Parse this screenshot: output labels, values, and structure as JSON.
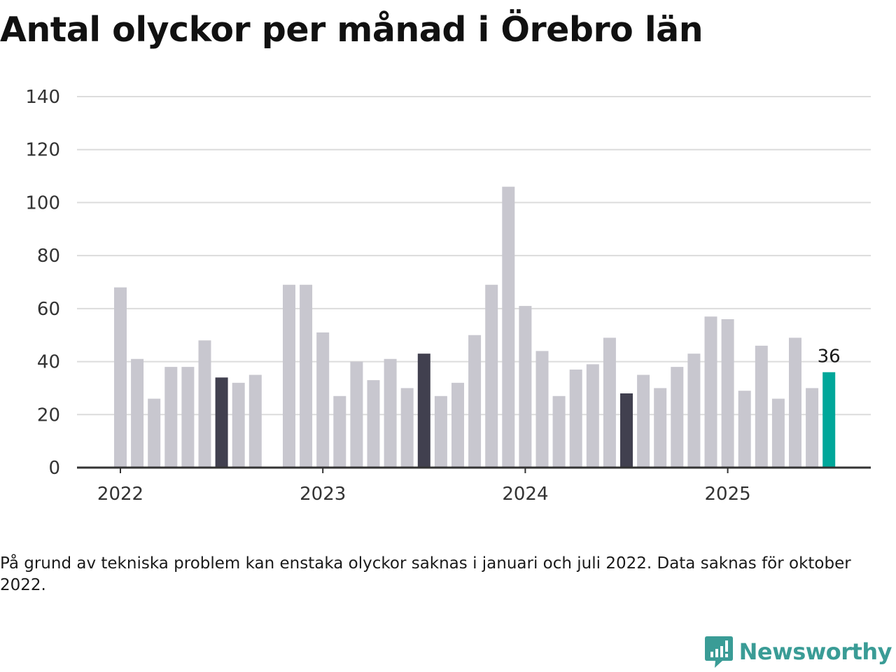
{
  "title": "Antal olyckor per månad i Örebro län",
  "footnote": "På grund av tekniska problem kan enstaka olyckor saknas i januari och juli 2022. Data saknas för oktober 2022.",
  "brand": {
    "name": "Newsworthy",
    "icon": "newsworthy-logo-icon",
    "color": "#3a9c96"
  },
  "colors": {
    "default": "#c8c7cf",
    "highlight": "#41404f",
    "latest": "#00a79a",
    "grid": "#dcdcdc",
    "axis": "#333333"
  },
  "chart_data": {
    "type": "bar",
    "title": "Antal olyckor per månad i Örebro län",
    "xlabel": "",
    "ylabel": "",
    "ylim": [
      0,
      140
    ],
    "yticks": [
      0,
      20,
      40,
      60,
      80,
      100,
      120,
      140
    ],
    "grid": true,
    "xticks": [
      {
        "label": "2022",
        "month": "2022-01"
      },
      {
        "label": "2023",
        "month": "2023-01"
      },
      {
        "label": "2024",
        "month": "2024-01"
      },
      {
        "label": "2025",
        "month": "2025-01"
      }
    ],
    "categories": [
      "2022-01",
      "2022-02",
      "2022-03",
      "2022-04",
      "2022-05",
      "2022-06",
      "2022-07",
      "2022-08",
      "2022-09",
      "2022-10",
      "2022-11",
      "2022-12",
      "2023-01",
      "2023-02",
      "2023-03",
      "2023-04",
      "2023-05",
      "2023-06",
      "2023-07",
      "2023-08",
      "2023-09",
      "2023-10",
      "2023-11",
      "2023-12",
      "2024-01",
      "2024-02",
      "2024-03",
      "2024-04",
      "2024-05",
      "2024-06",
      "2024-07",
      "2024-08",
      "2024-09",
      "2024-10",
      "2024-11",
      "2024-12",
      "2025-01",
      "2025-02",
      "2025-03",
      "2025-04",
      "2025-05",
      "2025-06",
      "2025-07"
    ],
    "values": [
      68,
      41,
      26,
      38,
      38,
      48,
      34,
      32,
      35,
      null,
      69,
      69,
      51,
      27,
      40,
      33,
      41,
      30,
      43,
      27,
      32,
      50,
      69,
      106,
      61,
      44,
      27,
      37,
      39,
      49,
      28,
      35,
      30,
      38,
      43,
      57,
      56,
      29,
      46,
      26,
      49,
      30,
      36
    ],
    "highlighted": [
      "2022-07",
      "2023-07",
      "2024-07"
    ],
    "latest": "2025-07",
    "data_labels": [
      {
        "month": "2025-07",
        "text": "36"
      }
    ]
  }
}
